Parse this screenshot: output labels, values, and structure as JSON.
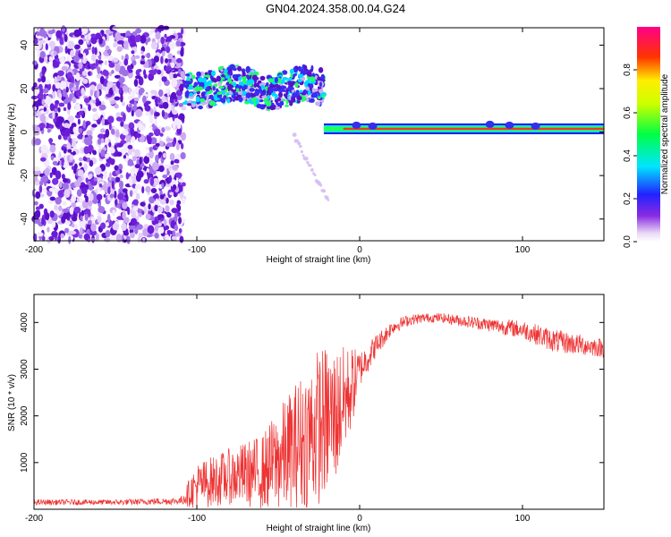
{
  "title": "GN04.2024.358.00.04.G24",
  "chart_data": [
    {
      "type": "heatmap",
      "xlabel": "Height of straight line (km)",
      "ylabel": "Frequency (Hz)",
      "xlim": [
        -200,
        150
      ],
      "ylim": [
        -50,
        48
      ],
      "x_ticks": [
        -200,
        -100,
        0,
        100
      ],
      "y_ticks": [
        -40,
        -20,
        0,
        20,
        40
      ],
      "colorbar": {
        "label": "Normalized spectral amplitude",
        "range": [
          0,
          1
        ],
        "ticks": [
          0.0,
          0.2,
          0.4,
          0.6,
          0.8
        ]
      },
      "features": {
        "noise_region_x": [
          -200,
          -108
        ],
        "signal_band_upper_x": [
          -107,
          -22
        ],
        "signal_band_upper_y": [
          14,
          30
        ],
        "tone_x": [
          -22,
          150
        ],
        "tone_y": 1.5
      }
    },
    {
      "type": "line",
      "xlabel": "Height of straight line (km)",
      "ylabel": "SNR (10 * v/v)",
      "xlim": [
        -200,
        150
      ],
      "ylim": [
        0,
        4600
      ],
      "x_ticks": [
        -200,
        -100,
        0,
        100
      ],
      "y_ticks": [
        1000,
        2000,
        3000,
        4000
      ],
      "color": "#ee3333",
      "envelope": {
        "x": [
          -200,
          -150,
          -110,
          -100,
          -80,
          -60,
          -40,
          -25,
          -15,
          -5,
          0,
          10,
          20,
          30,
          40,
          50,
          60,
          80,
          100,
          120,
          150
        ],
        "mean": [
          150,
          150,
          180,
          500,
          700,
          800,
          1300,
          1800,
          2000,
          2600,
          3000,
          3500,
          3900,
          4050,
          4100,
          4100,
          4050,
          3950,
          3850,
          3600,
          3450
        ],
        "spread": [
          60,
          60,
          80,
          500,
          600,
          800,
          1400,
          1700,
          1500,
          900,
          400,
          250,
          150,
          120,
          100,
          100,
          120,
          150,
          200,
          250,
          200
        ]
      }
    }
  ]
}
